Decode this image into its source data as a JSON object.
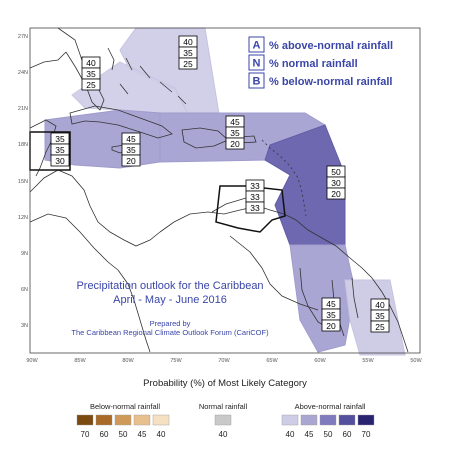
{
  "map": {
    "title_line1": "Precipitation outlook for the Caribbean",
    "title_line2": "April - May - June 2016",
    "prepared_line1": "Prepared by",
    "prepared_line2": "The Caribbean Regional Climate Outlook Forum (CariCOF)",
    "lat_labels": [
      "27N",
      "24N",
      "21N",
      "18N",
      "15N",
      "12N",
      "9N",
      "6N",
      "3N"
    ],
    "lon_labels": [
      "90W",
      "85W",
      "80W",
      "75W",
      "70W",
      "65W",
      "60W",
      "55W",
      "50W"
    ]
  },
  "legend_key": {
    "a_letter": "A",
    "a_text": "% above-normal rainfall",
    "n_letter": "N",
    "n_text": "% normal rainfall",
    "b_letter": "B",
    "b_text": "% below-normal rainfall"
  },
  "zones": [
    {
      "name": "northern-bahamas",
      "a": "40",
      "n": "35",
      "b": "25"
    },
    {
      "name": "bahamas",
      "a": "40",
      "n": "35",
      "b": "25"
    },
    {
      "name": "belize",
      "a": "35",
      "n": "35",
      "b": "30"
    },
    {
      "name": "cuba-jamaica",
      "a": "45",
      "n": "35",
      "b": "20"
    },
    {
      "name": "hispaniola-puerto-rico",
      "a": "45",
      "n": "35",
      "b": "20"
    },
    {
      "name": "lesser-antilles",
      "a": "50",
      "n": "30",
      "b": "20"
    },
    {
      "name": "abc-islands",
      "a": "33",
      "n": "33",
      "b": "33"
    },
    {
      "name": "guyana",
      "a": "45",
      "n": "35",
      "b": "20"
    },
    {
      "name": "suriname",
      "a": "40",
      "n": "35",
      "b": "25"
    }
  ],
  "colorbar": {
    "title": "Probability (%) of Most Likely Category",
    "below_label": "Below-normal rainfall",
    "normal_label": "Normal rainfall",
    "above_label": "Above-normal rainfall",
    "below_ticks": [
      "70",
      "60",
      "50",
      "45",
      "40"
    ],
    "normal_ticks": [
      "40"
    ],
    "above_ticks": [
      "40",
      "45",
      "50",
      "60",
      "70"
    ],
    "below_colors": [
      "#7a4a10",
      "#a86a26",
      "#cf9a59",
      "#e8c08d",
      "#f6e0c2"
    ],
    "normal_color": "#c9c9c9",
    "above_colors": [
      "#cfcde6",
      "#a9a6d2",
      "#807bbd",
      "#55509e",
      "#2a2470"
    ]
  },
  "colors": {
    "above_40": "#d2d0e8",
    "above_45": "#a9a6d3",
    "above_50": "#6d68b0",
    "key_text": "#3a46a8",
    "title_text": "#3a46a8"
  }
}
